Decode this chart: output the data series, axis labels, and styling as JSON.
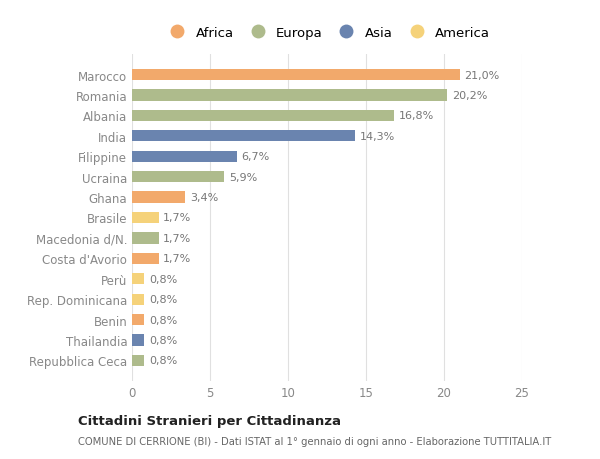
{
  "categories": [
    "Marocco",
    "Romania",
    "Albania",
    "India",
    "Filippine",
    "Ucraina",
    "Ghana",
    "Brasile",
    "Macedonia d/N.",
    "Costa d'Avorio",
    "Perù",
    "Rep. Dominicana",
    "Benin",
    "Thailandia",
    "Repubblica Ceca"
  ],
  "values": [
    21.0,
    20.2,
    16.8,
    14.3,
    6.7,
    5.9,
    3.4,
    1.7,
    1.7,
    1.7,
    0.8,
    0.8,
    0.8,
    0.8,
    0.8
  ],
  "continents": [
    "Africa",
    "Europa",
    "Europa",
    "Asia",
    "Asia",
    "Europa",
    "Africa",
    "America",
    "Europa",
    "Africa",
    "America",
    "America",
    "Africa",
    "Asia",
    "Europa"
  ],
  "colors": {
    "Africa": "#F2A96B",
    "Europa": "#AEBB8C",
    "Asia": "#6A84AF",
    "America": "#F5D27A"
  },
  "legend_order": [
    "Africa",
    "Europa",
    "Asia",
    "America"
  ],
  "title": "Cittadini Stranieri per Cittadinanza",
  "subtitle": "COMUNE DI CERRIONE (BI) - Dati ISTAT al 1° gennaio di ogni anno - Elaborazione TUTTITALIA.IT",
  "xlim": [
    0,
    25
  ],
  "xticks": [
    0,
    5,
    10,
    15,
    20,
    25
  ],
  "background_color": "#ffffff",
  "bar_height": 0.55,
  "label_color": "#777777",
  "tick_color": "#888888",
  "grid_color": "#e0e0e0"
}
